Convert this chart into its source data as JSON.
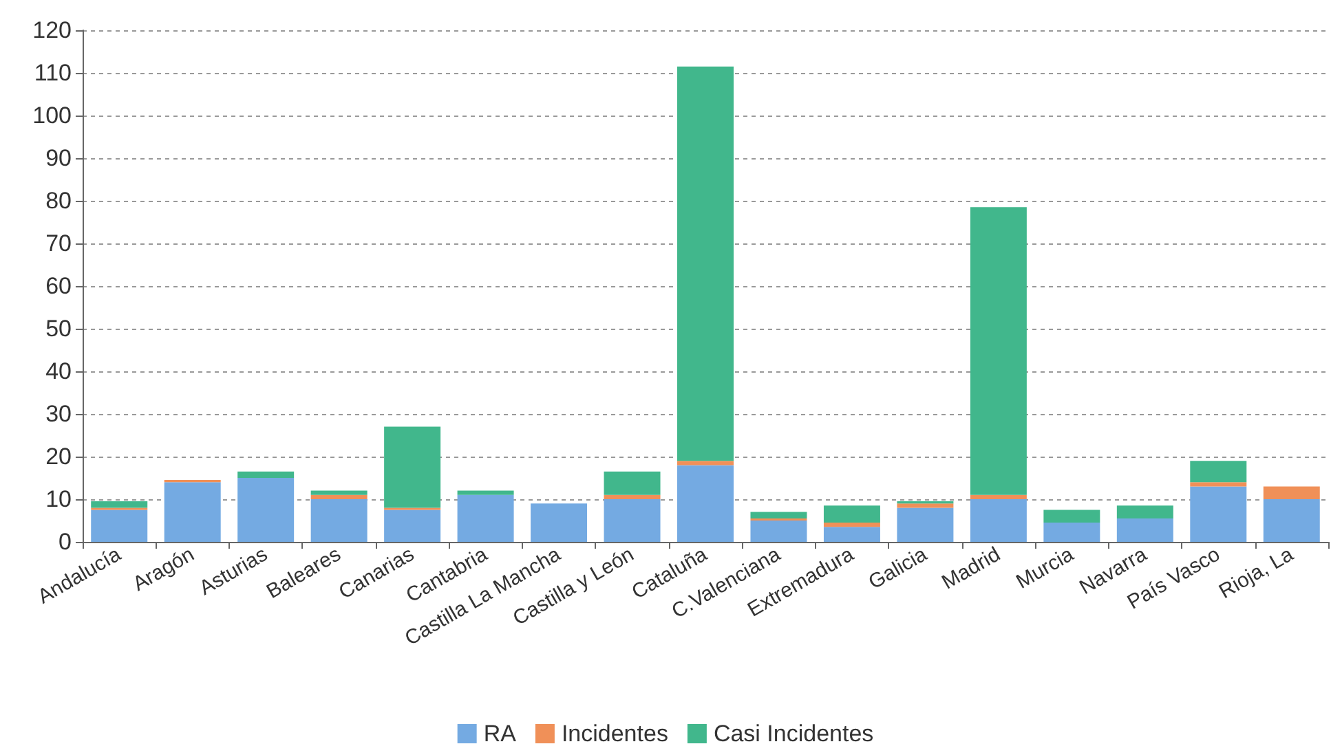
{
  "chart_data": {
    "type": "bar",
    "stacked": true,
    "categories": [
      "Andalucía",
      "Aragón",
      "Asturias",
      "Baleares",
      "Canarias",
      "Cantabria",
      "Castilla La Mancha",
      "Castilla y León",
      "Cataluña",
      "C.Valenciana",
      "Extremadura",
      "Galicia",
      "Madrid",
      "Murcia",
      "Navarra",
      "País Vasco",
      "Rioja, La"
    ],
    "series": [
      {
        "name": "RA",
        "color": "#74aae2",
        "values": [
          7.5,
          14,
          15,
          10,
          7.5,
          11,
          9,
          10,
          18,
          5,
          3.5,
          8,
          10,
          4.5,
          5.5,
          13,
          10
        ]
      },
      {
        "name": "Incidentes",
        "color": "#f09058",
        "values": [
          0.5,
          0.5,
          0,
          1,
          0.5,
          0,
          0,
          1,
          1,
          0.5,
          1,
          1,
          1,
          0,
          0,
          1,
          3
        ]
      },
      {
        "name": "Casi Incidentes",
        "color": "#41b78c",
        "values": [
          1.5,
          0,
          1.5,
          1,
          19,
          1,
          0,
          5.5,
          92.5,
          1.5,
          4,
          0.5,
          67.5,
          3,
          3,
          5,
          0
        ]
      }
    ],
    "ylim": [
      0,
      120
    ],
    "yticks": [
      0,
      10,
      20,
      30,
      40,
      50,
      60,
      70,
      80,
      90,
      100,
      110,
      120
    ],
    "grid": "y",
    "legend": "bottom"
  }
}
